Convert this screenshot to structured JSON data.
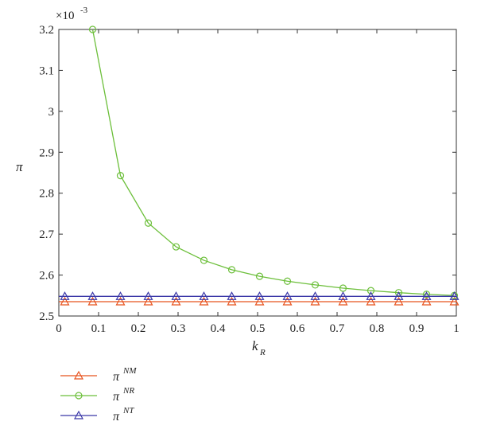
{
  "chart_data": {
    "type": "line",
    "xlabel": "k",
    "xlabel_sub": "R",
    "ylabel": "π",
    "scale_multiplier": "×10",
    "scale_exponent": "-3",
    "xlim": [
      0,
      1
    ],
    "ylim": [
      2.5,
      3.2
    ],
    "x_ticks": [
      "0",
      "0.1",
      "0.2",
      "0.3",
      "0.4",
      "0.5",
      "0.6",
      "0.7",
      "0.8",
      "0.9",
      "1"
    ],
    "y_ticks": [
      "2.5",
      "2.6",
      "2.7",
      "2.8",
      "2.9",
      "3",
      "3.1",
      "3.2"
    ],
    "x": [
      0.015,
      0.085,
      0.155,
      0.225,
      0.295,
      0.365,
      0.435,
      0.505,
      0.575,
      0.645,
      0.715,
      0.785,
      0.855,
      0.925,
      0.995
    ],
    "series": [
      {
        "name": "π",
        "name_sup": "NM",
        "color": "#e8531f",
        "marker": "triangle",
        "values": [
          2.535,
          2.535,
          2.535,
          2.535,
          2.535,
          2.535,
          2.535,
          2.535,
          2.535,
          2.535,
          2.535,
          2.535,
          2.535,
          2.535,
          2.535
        ]
      },
      {
        "name": "π",
        "name_sup": "NR",
        "color": "#6cbf3a",
        "marker": "circle",
        "values": [
          null,
          3.2,
          2.843,
          2.727,
          2.669,
          2.636,
          2.613,
          2.597,
          2.585,
          2.576,
          2.568,
          2.562,
          2.557,
          2.553,
          2.55
        ]
      },
      {
        "name": "π",
        "name_sup": "NT",
        "color": "#3b38a8",
        "marker": "triangle",
        "values": [
          2.548,
          2.548,
          2.548,
          2.548,
          2.548,
          2.548,
          2.548,
          2.548,
          2.548,
          2.548,
          2.548,
          2.548,
          2.548,
          2.548,
          2.548
        ]
      }
    ],
    "grid": false,
    "legend_position": "below-left"
  }
}
